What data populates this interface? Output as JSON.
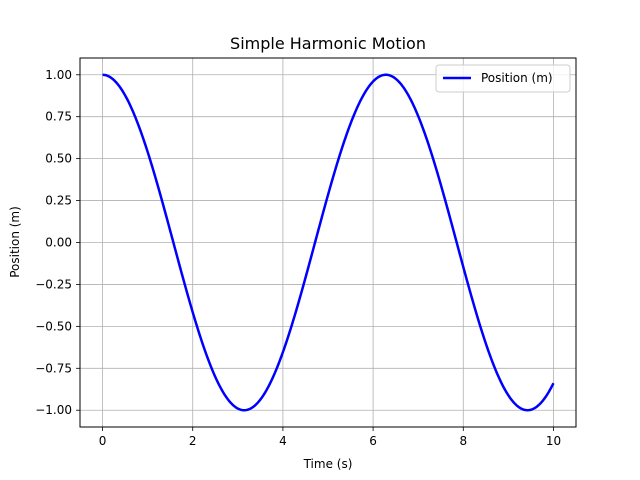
{
  "chart_data": {
    "type": "line",
    "title": "Simple Harmonic Motion",
    "xlabel": "Time (s)",
    "ylabel": "Position (m)",
    "xlim": [
      -0.5,
      10.5
    ],
    "ylim": [
      -1.1,
      1.1
    ],
    "xticks": [
      0,
      2,
      4,
      6,
      8,
      10
    ],
    "yticks": [
      -1.0,
      -0.75,
      -0.5,
      -0.25,
      0.0,
      0.25,
      0.5,
      0.75,
      1.0
    ],
    "xtick_labels": [
      "0",
      "2",
      "4",
      "6",
      "8",
      "10"
    ],
    "ytick_labels": [
      "−1.00",
      "−0.75",
      "−0.50",
      "−0.25",
      "0.00",
      "0.25",
      "0.50",
      "0.75",
      "1.00"
    ],
    "grid": true,
    "legend_position": "top-right",
    "series": [
      {
        "name": "Position (m)",
        "color": "#0000ff",
        "x": [
          0,
          0.5,
          1,
          1.5,
          2,
          2.5,
          3,
          3.5,
          4,
          4.5,
          5,
          5.5,
          6,
          6.5,
          7,
          7.5,
          8,
          8.5,
          9,
          9.5,
          10
        ],
        "y": [
          1.0,
          0.878,
          0.54,
          0.071,
          -0.416,
          -0.801,
          -0.99,
          -0.936,
          -0.654,
          -0.211,
          0.284,
          0.709,
          0.96,
          0.977,
          0.754,
          0.347,
          -0.146,
          -0.602,
          -0.911,
          -0.997,
          -0.839
        ]
      }
    ]
  }
}
